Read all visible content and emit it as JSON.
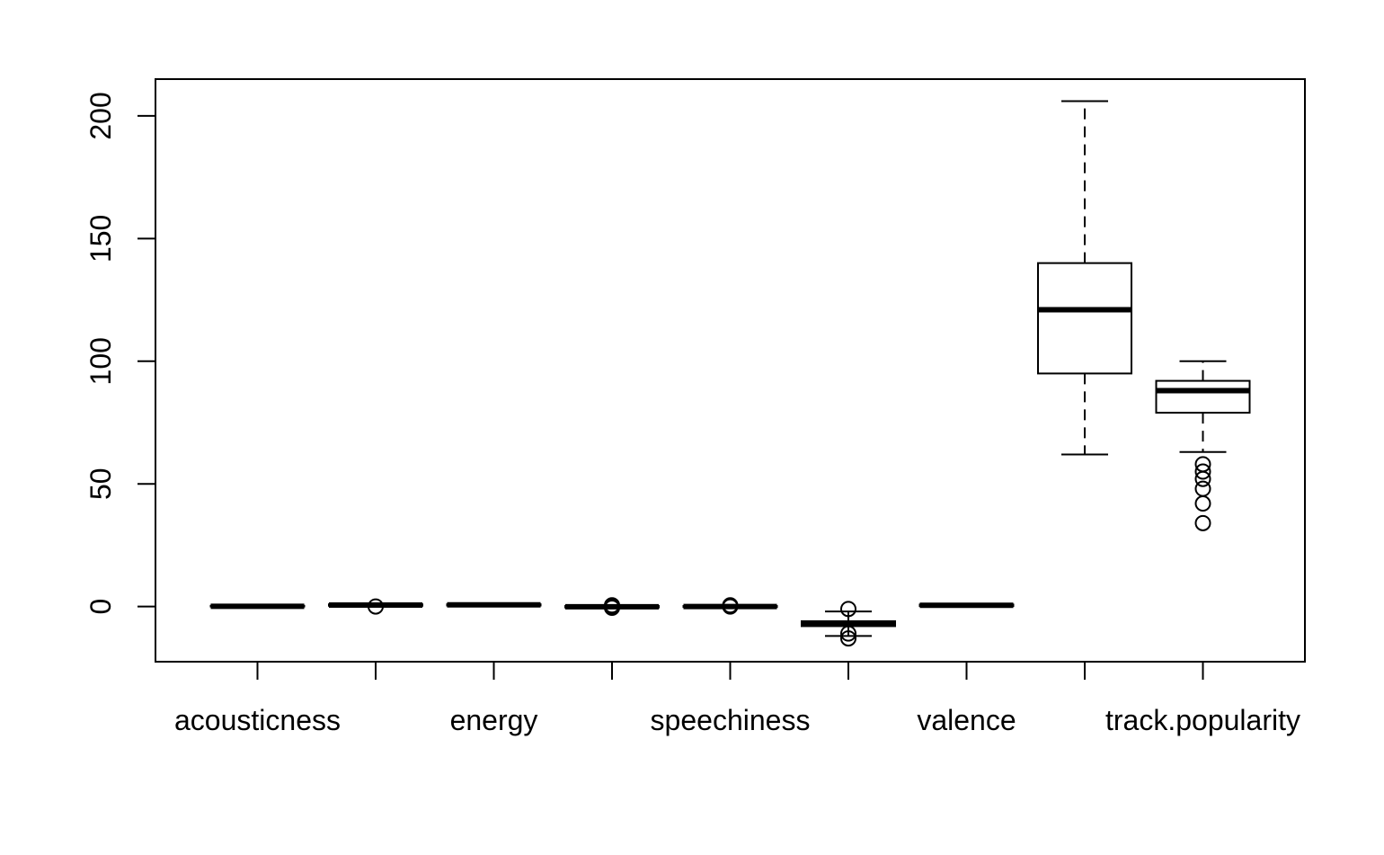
{
  "chart_data": {
    "type": "boxplot",
    "title": "",
    "xlabel": "",
    "ylabel": "",
    "ylim": [
      -22.5,
      215
    ],
    "yticks": [
      0,
      50,
      100,
      150,
      200
    ],
    "ytick_labels": [
      "0",
      "50",
      "100",
      "150",
      "200"
    ],
    "x_tick_labels": [
      "acousticness",
      "",
      "energy",
      "",
      "speechiness",
      "",
      "valence",
      "",
      "track.popularity"
    ],
    "boxes": [
      {
        "q1": 0.0,
        "median": 0.1,
        "q3": 0.3,
        "whisker_low": 0.0,
        "whisker_high": 0.4,
        "outliers": []
      },
      {
        "q1": 0.3,
        "median": 0.6,
        "q3": 0.9,
        "whisker_low": 0.2,
        "whisker_high": 1.0,
        "outliers": [
          0.0
        ]
      },
      {
        "q1": 0.4,
        "median": 0.7,
        "q3": 0.9,
        "whisker_low": 0.2,
        "whisker_high": 1.0,
        "outliers": []
      },
      {
        "q1": -0.4,
        "median": -0.1,
        "q3": 0.2,
        "whisker_low": -0.6,
        "whisker_high": 0.4,
        "outliers": [
          -0.5,
          0.0,
          0.5
        ]
      },
      {
        "q1": -0.2,
        "median": 0.0,
        "q3": 0.2,
        "whisker_low": -0.3,
        "whisker_high": 0.3,
        "outliers": [
          0.0,
          0.5
        ]
      },
      {
        "q1": -8,
        "median": -7,
        "q3": -6,
        "whisker_low": -12,
        "whisker_high": -2,
        "outliers": [
          -1,
          -11,
          -13
        ]
      },
      {
        "q1": 0.2,
        "median": 0.5,
        "q3": 0.8,
        "whisker_low": 0.1,
        "whisker_high": 1.0,
        "outliers": []
      },
      {
        "q1": 95,
        "median": 121,
        "q3": 140,
        "whisker_low": 62,
        "whisker_high": 206,
        "outliers": []
      },
      {
        "q1": 79,
        "median": 88,
        "q3": 92,
        "whisker_low": 63,
        "whisker_high": 100,
        "outliers": [
          58,
          55,
          52,
          48,
          42,
          34
        ]
      }
    ]
  }
}
